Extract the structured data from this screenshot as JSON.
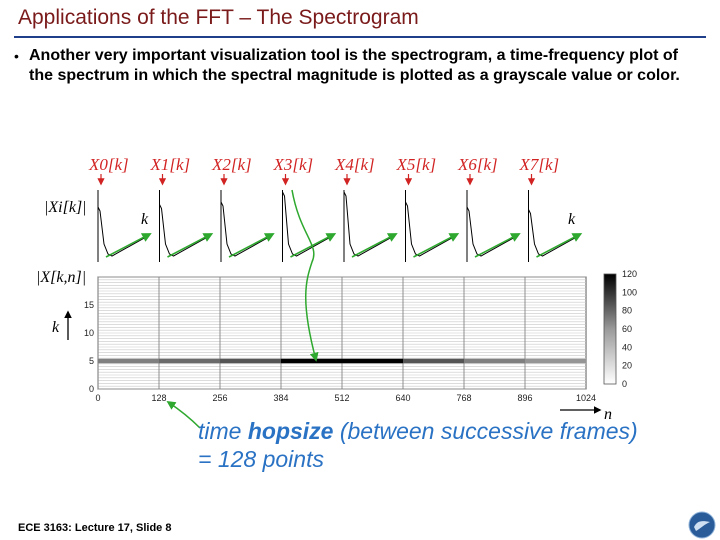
{
  "slide": {
    "title": "Applications of the FFT – The Spectrogram",
    "bullet": "Another very important visualization tool is the spectrogram, a time-frequency plot of the spectrum in which the spectral magnitude is plotted as a grayscale value or color.",
    "footer": "ECE 3163: Lecture 17, Slide 8"
  },
  "figure": {
    "frame_labels": [
      "X0[k]",
      "X1[k]",
      "X2[k]",
      "X3[k]",
      "X4[k]",
      "X5[k]",
      "X6[k]",
      "X7[k]"
    ],
    "top_ylabel": "|Xi[k]|",
    "k_label": "k",
    "spec_ylabel": "|X[k,n]|",
    "k_axis_label": "k",
    "n_axis_label": "n",
    "caption_line1_pre": "time ",
    "caption_line1_bold": "hopsize",
    "caption_line1_post": " (between successive frames)",
    "caption_line2": "= 128 points",
    "accent_red": "#d22323",
    "accent_green": "#2ea82e",
    "caption_blue": "#2a72c4"
  },
  "chart_data": {
    "type": "heatmap",
    "x_ticks": [
      "0",
      "128",
      "256",
      "384",
      "512",
      "640",
      "768",
      "896",
      "1024"
    ],
    "y_ticks": [
      "0",
      "5",
      "10",
      "15"
    ],
    "colorbar_ticks": [
      "120",
      "100",
      "80",
      "60",
      "40",
      "20",
      "0"
    ],
    "xlim": [
      0,
      1024
    ],
    "ylim": [
      0,
      20
    ],
    "colorbar_range": [
      0,
      120
    ],
    "frame_starts": [
      0,
      128,
      256,
      384,
      512,
      640,
      768,
      896
    ],
    "dominant_bin": 5,
    "frame_peak_magnitudes": [
      60,
      70,
      80,
      120,
      120,
      80,
      60,
      50
    ]
  }
}
